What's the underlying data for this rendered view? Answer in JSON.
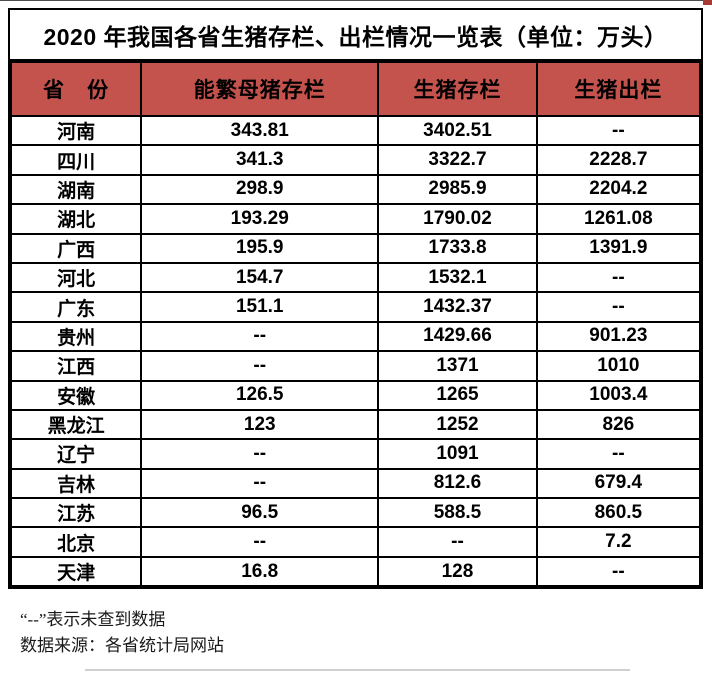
{
  "title": "2020 年我国各省生猪存栏、出栏情况一览表（单位：万头）",
  "chart_data": {
    "type": "table",
    "title": "2020 年我国各省生猪存栏、出栏情况一览表",
    "unit": "万头",
    "columns": [
      "省　份",
      "能繁母猪存栏",
      "生猪存栏",
      "生猪出栏"
    ],
    "rows": [
      [
        "河南",
        "343.81",
        "3402.51",
        "--"
      ],
      [
        "四川",
        "341.3",
        "3322.7",
        "2228.7"
      ],
      [
        "湖南",
        "298.9",
        "2985.9",
        "2204.2"
      ],
      [
        "湖北",
        "193.29",
        "1790.02",
        "1261.08"
      ],
      [
        "广西",
        "195.9",
        "1733.8",
        "1391.9"
      ],
      [
        "河北",
        "154.7",
        "1532.1",
        "--"
      ],
      [
        "广东",
        "151.1",
        "1432.37",
        "--"
      ],
      [
        "贵州",
        "--",
        "1429.66",
        "901.23"
      ],
      [
        "江西",
        "--",
        "1371",
        "1010"
      ],
      [
        "安徽",
        "126.5",
        "1265",
        "1003.4"
      ],
      [
        "黑龙江",
        "123",
        "1252",
        "826"
      ],
      [
        "辽宁",
        "--",
        "1091",
        "--"
      ],
      [
        "吉林",
        "--",
        "812.6",
        "679.4"
      ],
      [
        "江苏",
        "96.5",
        "588.5",
        "860.5"
      ],
      [
        "北京",
        "--",
        "--",
        "7.2"
      ],
      [
        "天津",
        "16.8",
        "128",
        "--"
      ]
    ],
    "missing_marker": "--"
  },
  "footnotes": {
    "dash_note": "“--”表示未查到数据",
    "source_note": "数据来源：各省统计局网站"
  },
  "colors": {
    "header_bg": "#c4534e",
    "border": "#000000",
    "text": "#000000"
  }
}
